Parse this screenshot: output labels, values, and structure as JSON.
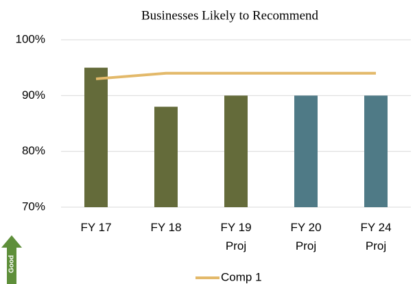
{
  "chart_data": {
    "type": "bar",
    "title": "Businesses Likely to Recommend",
    "categories": [
      "FY 17",
      "FY 18",
      "FY 19 Proj",
      "FY 20 Proj",
      "FY 24 Proj"
    ],
    "values": [
      95,
      88,
      90,
      90,
      90
    ],
    "colors": [
      "#646b3a",
      "#646b3a",
      "#646b3a",
      "#4f7a86",
      "#4f7a86"
    ],
    "series": [
      {
        "name": "Comp 1",
        "type": "line",
        "color": "#e3b96a",
        "values": [
          93,
          94,
          94,
          94,
          94
        ]
      }
    ],
    "ylim": [
      70,
      100
    ],
    "yticks": [
      {
        "value": 70,
        "label": "70%"
      },
      {
        "value": 80,
        "label": "80%"
      },
      {
        "value": 90,
        "label": "90%"
      },
      {
        "value": 100,
        "label": "100%"
      }
    ],
    "grid": true,
    "legend": "bottom",
    "annotation": "Good"
  }
}
